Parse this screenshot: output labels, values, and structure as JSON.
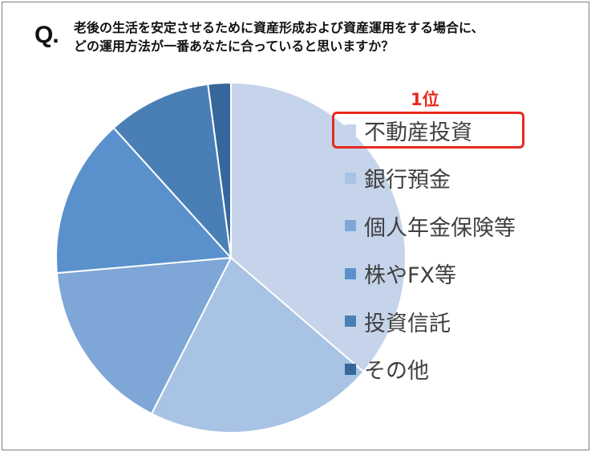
{
  "question": {
    "mark": "Q.",
    "line1": "老後の生活を安定させるために資産形成および資産運用をする場合に、",
    "line2": "どの運用方法が一番あなたに合っていると思いますか？"
  },
  "rank_label": "1位",
  "chart_data": {
    "type": "pie",
    "start_angle_deg": 0,
    "direction": "clockwise",
    "categories": [
      "不動産投資",
      "銀行預金",
      "個人年金保険等",
      "株やFX等",
      "投資信託",
      "その他"
    ],
    "values": [
      36.3,
      21.2,
      16.1,
      14.7,
      9.6,
      2.1
    ],
    "colors": [
      "#c5d4ea",
      "#a9c3e4",
      "#7ea6d6",
      "#5a91cc",
      "#4a7fb5",
      "#35679b"
    ],
    "legend_position": "right",
    "highlighted_category": "不動産投資"
  }
}
